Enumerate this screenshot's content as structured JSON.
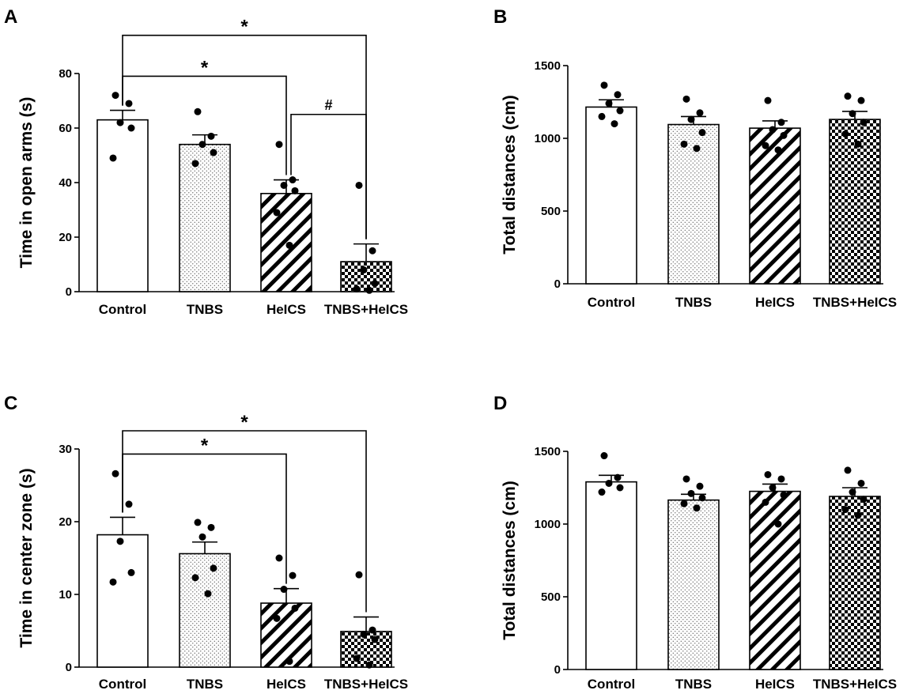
{
  "figure": {
    "panels": [
      "A",
      "B",
      "C",
      "D"
    ]
  },
  "chart_data": [
    {
      "panel": "A",
      "type": "bar",
      "categories": [
        "Control",
        "TNBS",
        "HeICS",
        "TNBS+HeICS"
      ],
      "values": [
        63,
        54,
        36,
        11
      ],
      "errors": [
        3.5,
        3.5,
        5,
        6.5
      ],
      "points": [
        [
          72,
          69,
          62,
          60,
          49
        ],
        [
          66,
          57,
          54,
          51,
          47
        ],
        [
          54,
          41,
          39,
          37,
          29,
          17
        ],
        [
          39,
          15,
          8,
          3,
          1,
          0.5
        ]
      ],
      "ylabel": "Time in open arms (s)",
      "ylim": [
        0,
        80
      ],
      "yticks": [
        0,
        20,
        40,
        60,
        80
      ],
      "patterns": [
        "open",
        "dots",
        "stripes",
        "checker"
      ],
      "significance": [
        {
          "from": 0,
          "to": 3,
          "label": "*",
          "level": 94
        },
        {
          "from": 0,
          "to": 2,
          "label": "*",
          "level": 79
        },
        {
          "from": 2,
          "to": 3,
          "label": "#",
          "level": 65
        }
      ]
    },
    {
      "panel": "B",
      "type": "bar",
      "categories": [
        "Control",
        "TNBS",
        "HeICS",
        "TNBS+HeICS"
      ],
      "values": [
        1215,
        1095,
        1070,
        1130
      ],
      "errors": [
        50,
        55,
        50,
        55
      ],
      "points": [
        [
          1365,
          1300,
          1240,
          1190,
          1150,
          1100
        ],
        [
          1270,
          1175,
          1130,
          1040,
          960,
          930
        ],
        [
          1260,
          1110,
          1060,
          1020,
          950,
          920
        ],
        [
          1290,
          1260,
          1170,
          1110,
          1030,
          960
        ]
      ],
      "ylabel": "Total distances (cm)",
      "ylim": [
        0,
        1500
      ],
      "yticks": [
        0,
        500,
        1000,
        1500
      ],
      "patterns": [
        "open",
        "dots",
        "stripes",
        "checker"
      ],
      "significance": []
    },
    {
      "panel": "C",
      "type": "bar",
      "categories": [
        "Control",
        "TNBS",
        "HeICS",
        "TNBS+HeICS"
      ],
      "values": [
        18.2,
        15.6,
        8.8,
        4.9
      ],
      "errors": [
        2.4,
        1.6,
        2,
        2
      ],
      "points": [
        [
          26.6,
          22.4,
          17.3,
          13,
          11.7
        ],
        [
          19.9,
          19.2,
          17.9,
          13.6,
          12.3,
          10.1
        ],
        [
          15,
          12.6,
          10.7,
          8.1,
          6.7,
          0.8
        ],
        [
          12.7,
          5.1,
          4.5,
          3.8,
          1.2,
          0.3
        ]
      ],
      "ylabel": "Time in center zone (s)",
      "ylim": [
        0,
        30
      ],
      "yticks": [
        0,
        10,
        20,
        30
      ],
      "patterns": [
        "open",
        "dots",
        "stripes",
        "checker"
      ],
      "significance": [
        {
          "from": 0,
          "to": 3,
          "label": "*",
          "level": 32.5
        },
        {
          "from": 0,
          "to": 2,
          "label": "*",
          "level": 29.3
        }
      ]
    },
    {
      "panel": "D",
      "type": "bar",
      "categories": [
        "Control",
        "TNBS",
        "HeICS",
        "TNBS+HeICS"
      ],
      "values": [
        1290,
        1165,
        1225,
        1190
      ],
      "errors": [
        45,
        40,
        50,
        60
      ],
      "points": [
        [
          1470,
          1320,
          1280,
          1250,
          1220
        ],
        [
          1310,
          1260,
          1210,
          1180,
          1140,
          1110
        ],
        [
          1340,
          1310,
          1250,
          1200,
          1150,
          1000
        ],
        [
          1370,
          1280,
          1220,
          1170,
          1100,
          1060
        ]
      ],
      "ylabel": "Total distances (cm)",
      "ylim": [
        0,
        1500
      ],
      "yticks": [
        0,
        500,
        1000,
        1500
      ],
      "patterns": [
        "open",
        "dots",
        "stripes",
        "checker"
      ],
      "significance": []
    }
  ]
}
